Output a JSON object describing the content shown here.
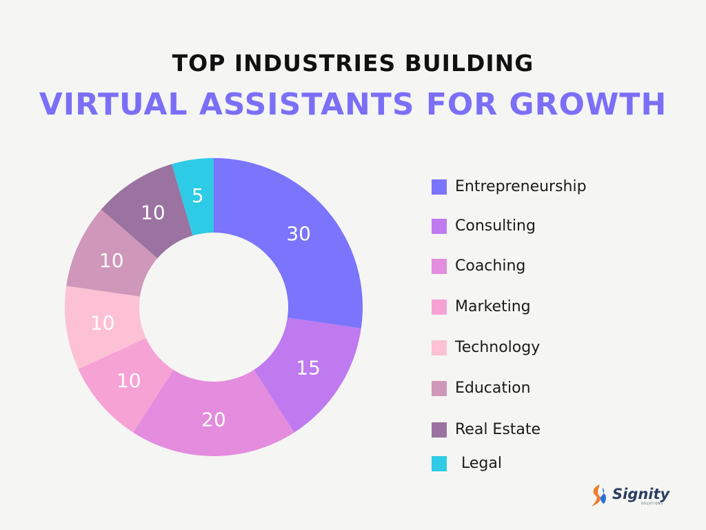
{
  "chart_data": {
    "type": "pie",
    "title_line1": "TOP INDUSTRIES BUILDING",
    "title_line2": "VIRTUAL ASSISTANTS FOR GROWTH",
    "title_color": "#111111",
    "subtitle_color": "#7b6ff7",
    "label_color": "#ffffff",
    "categories": [
      "Entrepreneurship",
      "Consulting",
      "Coaching",
      "Marketing",
      "Technology",
      "Education",
      "Real Estate",
      "Legal"
    ],
    "values": [
      30,
      15,
      20,
      10,
      10,
      10,
      10,
      5
    ],
    "colors": [
      "#7b74fc",
      "#bf7aef",
      "#e48cdd",
      "#f6a2d4",
      "#fdc1d5",
      "#cf97ba",
      "#9a73a0",
      "#2dcbe6"
    ],
    "legend_position": "right"
  },
  "brand": {
    "name": "Signity",
    "sub": "SOLUTIONS",
    "colors": [
      "#f07a2c",
      "#2a6fd6"
    ]
  }
}
